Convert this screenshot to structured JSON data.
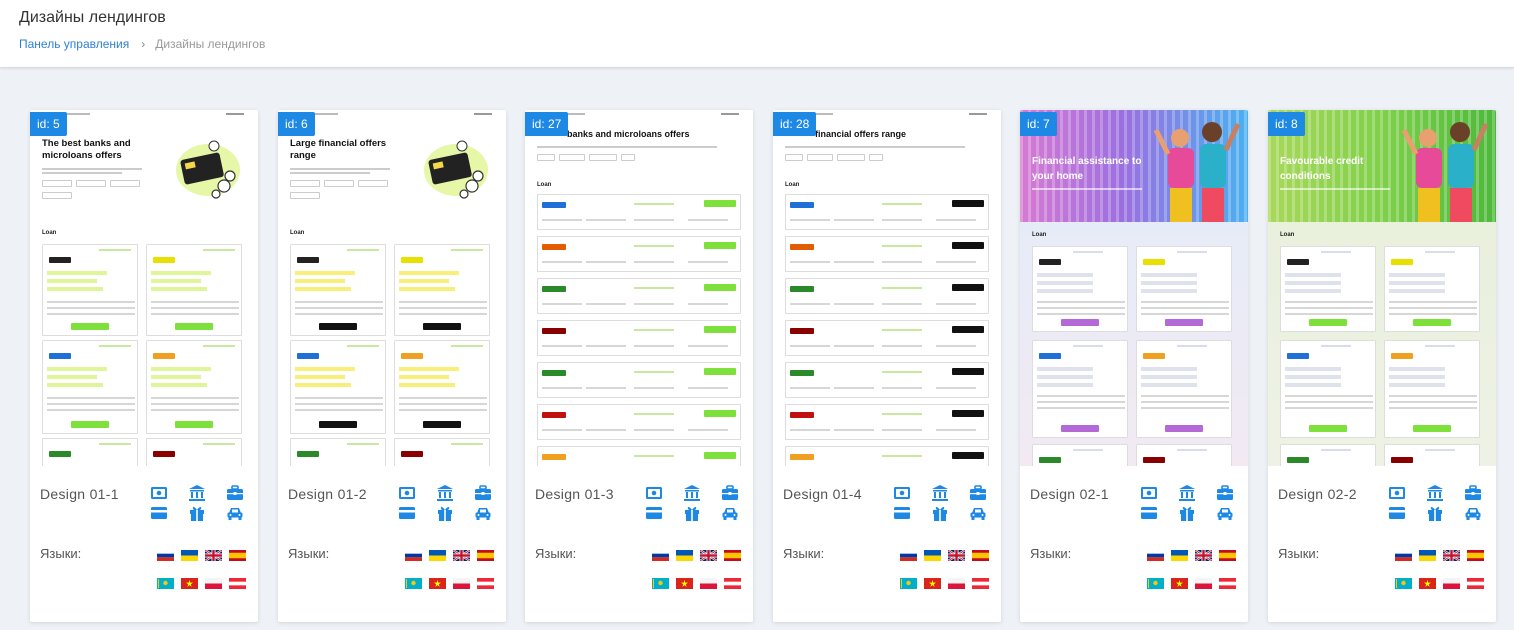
{
  "header": {
    "title": "Дизайны лендингов",
    "breadcrumb": {
      "root": "Панель управления",
      "separator": "›",
      "current": "Дизайны лендингов"
    }
  },
  "languages_label": "Языки:",
  "category_icons": [
    "card-icon",
    "bank-icon",
    "briefcase-icon",
    "credit-card-icon",
    "gift-icon",
    "car-icon"
  ],
  "flags": [
    "ru",
    "ua",
    "gb",
    "es",
    "kz",
    "vn",
    "pl",
    "at"
  ],
  "colors": {
    "accent": "#1e88e5",
    "green": "#7ee03b",
    "black": "#111111"
  },
  "cards": [
    {
      "id": "id: 5",
      "name": "Design 01-1",
      "variant": "a",
      "hero": "The best banks and microloans offers",
      "button": "green"
    },
    {
      "id": "id: 6",
      "name": "Design 01-2",
      "variant": "a",
      "hero": "Large financial offers range",
      "button": "black"
    },
    {
      "id": "id: 27",
      "name": "Design 01-3",
      "variant": "b",
      "hero": "banks and microloans offers",
      "button": "green"
    },
    {
      "id": "id: 28",
      "name": "Design 01-4",
      "variant": "b",
      "hero": "financial offers range",
      "button": "black"
    },
    {
      "id": "id: 7",
      "name": "Design 02-1",
      "variant": "c",
      "hero": "Financial assistance to your home",
      "button": "purple"
    },
    {
      "id": "id: 8",
      "name": "Design 02-2",
      "variant": "c",
      "hero": "Favourable credit conditions",
      "button": "green"
    }
  ],
  "preview_text": {
    "loan": "Loan"
  }
}
